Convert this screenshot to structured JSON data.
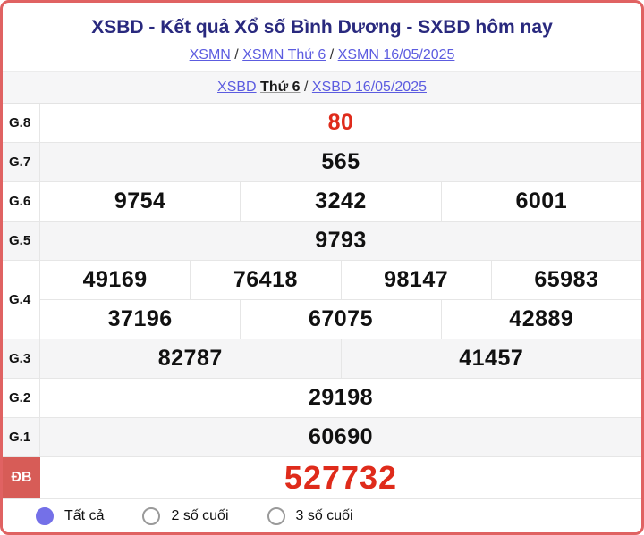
{
  "header": {
    "title": "XSBD - Kết quả Xổ số Bình Dương - SXBD hôm nay",
    "separator": "/",
    "breadcrumb1": [
      {
        "label": "XSMN"
      },
      {
        "label": "XSMN Thứ 6"
      },
      {
        "label": "XSMN 16/05/2025"
      }
    ],
    "breadcrumb2": {
      "link1": "XSBD",
      "bold_text": "Thứ 6",
      "link2": "XSBD 16/05/2025"
    }
  },
  "results": {
    "rows": [
      {
        "label": "G.8",
        "highlight": true,
        "jackpot": false,
        "values": [
          [
            "80"
          ]
        ]
      },
      {
        "label": "G.7",
        "highlight": false,
        "jackpot": false,
        "values": [
          [
            "565"
          ]
        ]
      },
      {
        "label": "G.6",
        "highlight": false,
        "jackpot": false,
        "values": [
          [
            "9754",
            "3242",
            "6001"
          ]
        ]
      },
      {
        "label": "G.5",
        "highlight": false,
        "jackpot": false,
        "values": [
          [
            "9793"
          ]
        ]
      },
      {
        "label": "G.4",
        "highlight": false,
        "jackpot": false,
        "values": [
          [
            "49169",
            "76418",
            "98147",
            "65983"
          ],
          [
            "37196",
            "67075",
            "42889"
          ]
        ]
      },
      {
        "label": "G.3",
        "highlight": false,
        "jackpot": false,
        "values": [
          [
            "82787",
            "41457"
          ]
        ]
      },
      {
        "label": "G.2",
        "highlight": false,
        "jackpot": false,
        "values": [
          [
            "29198"
          ]
        ]
      },
      {
        "label": "G.1",
        "highlight": false,
        "jackpot": false,
        "values": [
          [
            "60690"
          ]
        ]
      },
      {
        "label": "ĐB",
        "highlight": true,
        "jackpot": true,
        "values": [
          [
            "527732"
          ]
        ]
      }
    ]
  },
  "filters": {
    "options": [
      {
        "label": "Tất cả",
        "selected": true
      },
      {
        "label": "2 số cuối",
        "selected": false
      },
      {
        "label": "3 số cuối",
        "selected": false
      }
    ]
  },
  "colors": {
    "frame_border": "#e06262",
    "title": "#29297e",
    "link": "#5c5ce0",
    "highlight_number": "#df2b1b",
    "jackpot_label_bg": "#d75c57",
    "alt_row_bg": "#f5f5f6",
    "radio_selected": "#7470e8"
  }
}
